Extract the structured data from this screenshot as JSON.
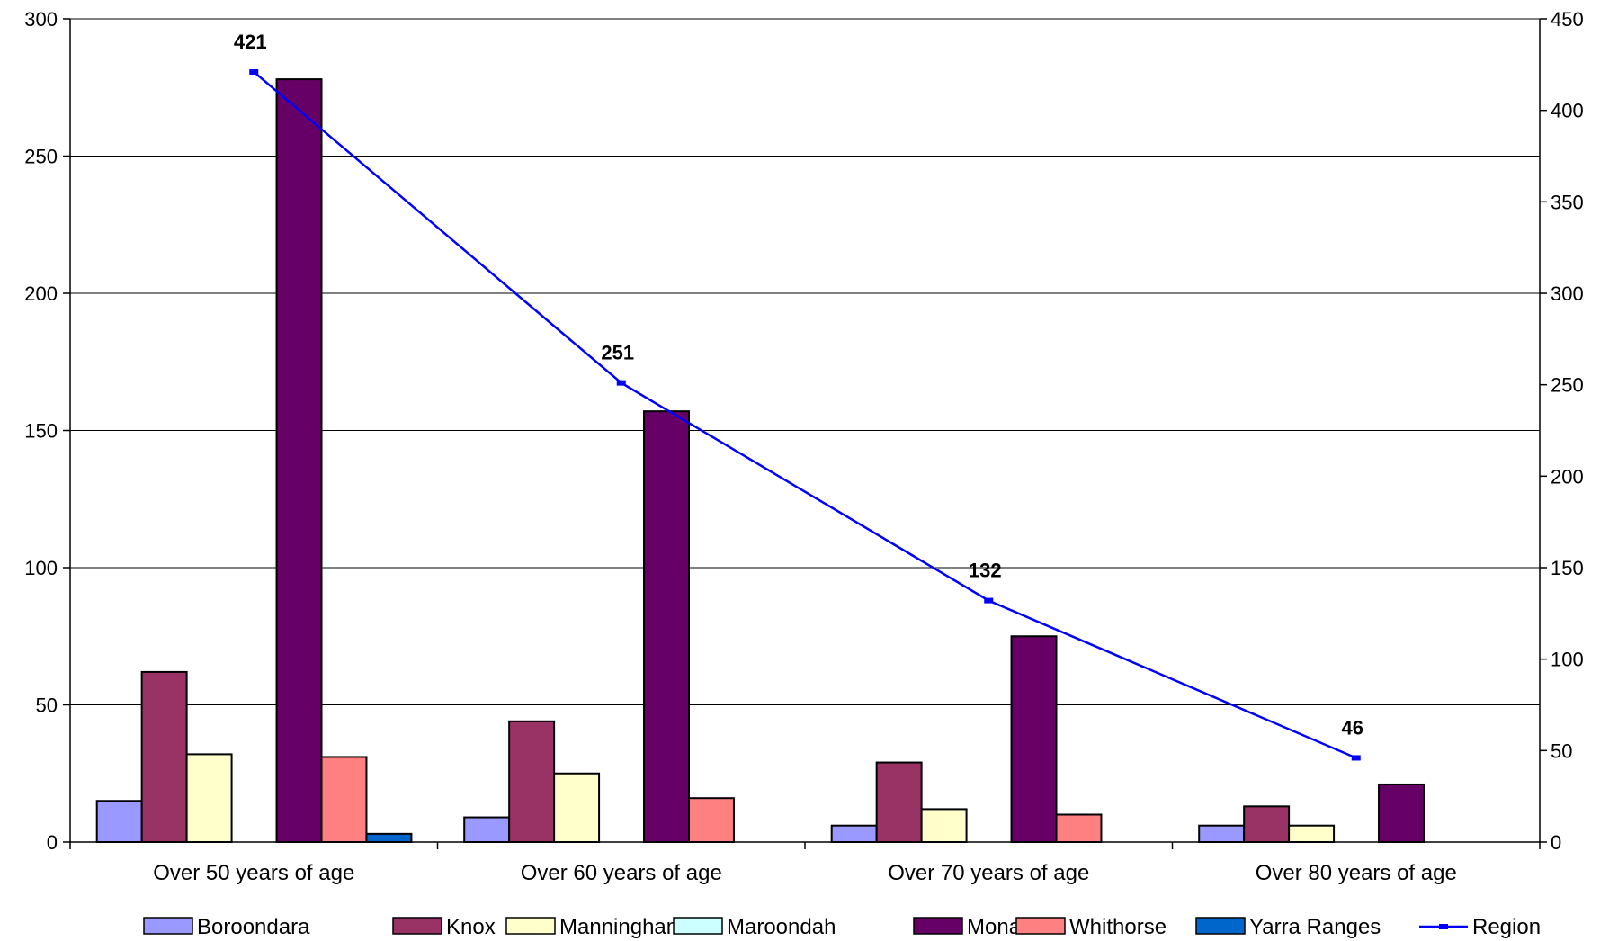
{
  "chart_data": {
    "type": "bar",
    "categories": [
      "Over 50 years of age",
      "Over 60 years of age",
      "Over 70 years of age",
      "Over 80 years of age"
    ],
    "y_left": {
      "min": 0,
      "max": 300,
      "ticks": [
        "0",
        "50",
        "100",
        "150",
        "200",
        "250",
        "300"
      ]
    },
    "y_right": {
      "min": 0,
      "max": 450,
      "ticks": [
        "0",
        "50",
        "100",
        "150",
        "200",
        "250",
        "300",
        "350",
        "400",
        "450"
      ]
    },
    "grid": true,
    "legend_position": "bottom",
    "series": [
      {
        "name": "Boroondara",
        "type": "bar",
        "axis": "left",
        "color": "#9999ff",
        "values": [
          15,
          9,
          6,
          6
        ]
      },
      {
        "name": "Knox",
        "type": "bar",
        "axis": "left",
        "color": "#993366",
        "values": [
          62,
          44,
          29,
          13
        ]
      },
      {
        "name": "Manningham",
        "type": "bar",
        "axis": "left",
        "color": "#ffffcc",
        "values": [
          32,
          25,
          12,
          6
        ]
      },
      {
        "name": "Maroondah",
        "type": "bar",
        "axis": "left",
        "color": "#ccffff",
        "values": [
          0,
          0,
          0,
          0
        ]
      },
      {
        "name": "Monash",
        "type": "bar",
        "axis": "left",
        "color": "#660066",
        "values": [
          278,
          157,
          75,
          21
        ]
      },
      {
        "name": "Whithorse",
        "type": "bar",
        "axis": "left",
        "color": "#ff8080",
        "values": [
          31,
          16,
          10,
          0
        ]
      },
      {
        "name": "Yarra Ranges",
        "type": "bar",
        "axis": "left",
        "color": "#0066cc",
        "values": [
          3,
          0,
          0,
          0
        ]
      },
      {
        "name": "Region",
        "type": "line",
        "axis": "right",
        "color": "#0000ff",
        "values": [
          421,
          251,
          132,
          46
        ],
        "labels": [
          "421",
          "251",
          "132",
          "46"
        ]
      }
    ]
  }
}
